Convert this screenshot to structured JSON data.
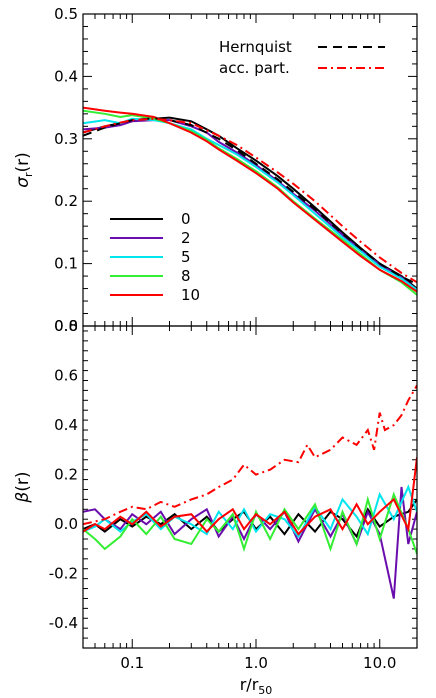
{
  "chart_data": [
    {
      "type": "line",
      "panel": "top",
      "ylabel": "σr(r)",
      "xscale": "log",
      "xlim": [
        0.04,
        20
      ],
      "ylim": [
        0.0,
        0.5
      ],
      "yticks": [
        0.0,
        0.1,
        0.2,
        0.3,
        0.4,
        0.5
      ],
      "ytick_labels": [
        "0.0",
        "0.1",
        "0.2",
        "0.3",
        "0.4",
        "0.5"
      ],
      "legend_models": {
        "placement": "top-right",
        "entries": [
          {
            "label": "Hernquist",
            "color": "#000000",
            "style": "dashed"
          },
          {
            "label": "acc. part.",
            "color": "#ff0000",
            "style": "dash-dot"
          }
        ]
      },
      "legend_times": {
        "placement": "lower-left",
        "entries": [
          {
            "label": "0",
            "color": "#000000"
          },
          {
            "label": "2",
            "color": "#6a0dad"
          },
          {
            "label": "5",
            "color": "#00e5ee"
          },
          {
            "label": "8",
            "color": "#33ee33"
          },
          {
            "label": "10",
            "color": "#ff0000"
          }
        ]
      },
      "series": [
        {
          "name": "0",
          "color": "#000000",
          "style": "solid",
          "x": [
            0.04,
            0.06,
            0.08,
            0.1,
            0.15,
            0.2,
            0.3,
            0.4,
            0.5,
            0.7,
            1.0,
            1.5,
            2,
            3,
            5,
            7,
            10,
            15,
            20
          ],
          "y": [
            0.31,
            0.32,
            0.325,
            0.33,
            0.332,
            0.334,
            0.328,
            0.315,
            0.305,
            0.285,
            0.265,
            0.24,
            0.22,
            0.19,
            0.15,
            0.125,
            0.1,
            0.08,
            0.06
          ]
        },
        {
          "name": "2",
          "color": "#6a0dad",
          "style": "solid",
          "x": [
            0.04,
            0.06,
            0.08,
            0.1,
            0.15,
            0.2,
            0.3,
            0.4,
            0.5,
            0.7,
            1.0,
            1.5,
            2,
            3,
            5,
            7,
            10,
            15,
            20
          ],
          "y": [
            0.315,
            0.318,
            0.322,
            0.328,
            0.33,
            0.33,
            0.32,
            0.31,
            0.295,
            0.278,
            0.258,
            0.232,
            0.212,
            0.185,
            0.146,
            0.122,
            0.098,
            0.078,
            0.058
          ]
        },
        {
          "name": "5",
          "color": "#00e5ee",
          "style": "solid",
          "x": [
            0.04,
            0.06,
            0.08,
            0.1,
            0.15,
            0.2,
            0.3,
            0.4,
            0.5,
            0.7,
            1.0,
            1.5,
            2,
            3,
            5,
            7,
            10,
            15,
            20
          ],
          "y": [
            0.325,
            0.33,
            0.325,
            0.332,
            0.33,
            0.325,
            0.315,
            0.3,
            0.29,
            0.275,
            0.255,
            0.23,
            0.21,
            0.18,
            0.142,
            0.12,
            0.095,
            0.076,
            0.058
          ]
        },
        {
          "name": "8",
          "color": "#33ee33",
          "style": "solid",
          "x": [
            0.04,
            0.06,
            0.08,
            0.1,
            0.15,
            0.2,
            0.3,
            0.4,
            0.5,
            0.7,
            1.0,
            1.5,
            2,
            3,
            5,
            7,
            10,
            15,
            20
          ],
          "y": [
            0.345,
            0.34,
            0.335,
            0.338,
            0.332,
            0.325,
            0.312,
            0.298,
            0.285,
            0.268,
            0.248,
            0.222,
            0.2,
            0.172,
            0.138,
            0.115,
            0.09,
            0.07,
            0.05
          ]
        },
        {
          "name": "10",
          "color": "#ff0000",
          "style": "solid",
          "x": [
            0.04,
            0.06,
            0.08,
            0.1,
            0.15,
            0.2,
            0.3,
            0.4,
            0.5,
            0.7,
            1.0,
            1.5,
            2,
            3,
            5,
            7,
            10,
            15,
            20
          ],
          "y": [
            0.35,
            0.345,
            0.342,
            0.34,
            0.335,
            0.325,
            0.31,
            0.296,
            0.283,
            0.265,
            0.245,
            0.22,
            0.198,
            0.17,
            0.135,
            0.112,
            0.09,
            0.072,
            0.055
          ]
        },
        {
          "name": "Hernquist",
          "color": "#000000",
          "style": "dashed",
          "x": [
            0.04,
            0.06,
            0.08,
            0.1,
            0.15,
            0.2,
            0.3,
            0.5,
            0.7,
            1.0,
            1.5,
            2,
            3,
            5,
            7,
            10,
            15,
            20
          ],
          "y": [
            0.305,
            0.318,
            0.325,
            0.33,
            0.333,
            0.33,
            0.322,
            0.3,
            0.282,
            0.26,
            0.235,
            0.215,
            0.187,
            0.148,
            0.124,
            0.1,
            0.079,
            0.067
          ]
        },
        {
          "name": "acc. part.",
          "color": "#ff0000",
          "style": "dash-dot",
          "x": [
            0.04,
            0.06,
            0.08,
            0.1,
            0.15,
            0.2,
            0.3,
            0.5,
            0.7,
            1.0,
            1.5,
            2,
            3,
            5,
            7,
            10,
            15,
            20
          ],
          "y": [
            0.31,
            0.32,
            0.326,
            0.33,
            0.332,
            0.33,
            0.325,
            0.305,
            0.29,
            0.27,
            0.246,
            0.228,
            0.2,
            0.16,
            0.135,
            0.11,
            0.085,
            0.07
          ]
        }
      ]
    },
    {
      "type": "line",
      "panel": "bottom",
      "xlabel": "r/r50",
      "ylabel": "β(r)",
      "xscale": "log",
      "xlim": [
        0.04,
        20
      ],
      "ylim": [
        -0.5,
        0.8
      ],
      "xticks": [
        0.1,
        1.0,
        10.0
      ],
      "xtick_labels": [
        "0.1",
        "1.0",
        "10.0"
      ],
      "yticks": [
        -0.4,
        -0.2,
        0.0,
        0.2,
        0.4,
        0.6,
        0.8
      ],
      "ytick_labels": [
        "-0.4",
        "-0.2",
        "0.0",
        "0.2",
        "0.4",
        "0.6",
        "0.8"
      ],
      "series": [
        {
          "name": "0",
          "color": "#000000",
          "style": "solid",
          "x": [
            0.04,
            0.05,
            0.06,
            0.08,
            0.1,
            0.13,
            0.17,
            0.22,
            0.3,
            0.4,
            0.5,
            0.65,
            0.8,
            1.0,
            1.3,
            1.7,
            2.2,
            3,
            4,
            5,
            6.5,
            8,
            10,
            13,
            17,
            20
          ],
          "y": [
            -0.02,
            0.0,
            -0.03,
            0.02,
            -0.01,
            0.03,
            0.0,
            0.04,
            -0.02,
            0.03,
            -0.03,
            0.02,
            0.05,
            -0.02,
            0.03,
            -0.04,
            0.04,
            -0.03,
            0.05,
            0.02,
            -0.05,
            0.06,
            -0.01,
            0.03,
            0.05,
            0.1
          ]
        },
        {
          "name": "2",
          "color": "#6a0dad",
          "style": "solid",
          "x": [
            0.04,
            0.05,
            0.06,
            0.08,
            0.1,
            0.13,
            0.17,
            0.22,
            0.3,
            0.4,
            0.5,
            0.65,
            0.8,
            1.0,
            1.3,
            1.7,
            2.2,
            3,
            4,
            5,
            6.5,
            8,
            10,
            13,
            15,
            17,
            20
          ],
          "y": [
            0.05,
            0.06,
            0.02,
            -0.02,
            0.04,
            0.0,
            0.05,
            -0.04,
            0.02,
            0.06,
            -0.05,
            0.03,
            -0.06,
            0.04,
            -0.02,
            0.05,
            -0.07,
            0.06,
            -0.05,
            0.04,
            -0.08,
            0.05,
            -0.04,
            -0.3,
            0.15,
            -0.08,
            0.05
          ]
        },
        {
          "name": "5",
          "color": "#00e5ee",
          "style": "solid",
          "x": [
            0.04,
            0.05,
            0.06,
            0.08,
            0.1,
            0.13,
            0.17,
            0.22,
            0.3,
            0.4,
            0.5,
            0.65,
            0.8,
            1.0,
            1.3,
            1.7,
            2.2,
            3,
            4,
            5,
            6.5,
            8,
            10,
            13,
            17,
            20
          ],
          "y": [
            -0.03,
            -0.01,
            0.02,
            -0.03,
            0.01,
            0.04,
            -0.02,
            0.03,
            0.0,
            -0.04,
            0.05,
            -0.02,
            0.06,
            -0.03,
            0.04,
            0.02,
            -0.05,
            0.07,
            -0.02,
            0.1,
            0.03,
            -0.04,
            0.12,
            0.02,
            0.15,
            0.05
          ]
        },
        {
          "name": "8",
          "color": "#33ee33",
          "style": "solid",
          "x": [
            0.04,
            0.05,
            0.06,
            0.08,
            0.1,
            0.13,
            0.17,
            0.22,
            0.3,
            0.4,
            0.5,
            0.65,
            0.8,
            1.0,
            1.3,
            1.7,
            2.2,
            3,
            4,
            5,
            6.5,
            8,
            10,
            13,
            17,
            20
          ],
          "y": [
            -0.02,
            -0.06,
            -0.1,
            -0.05,
            0.02,
            -0.04,
            0.03,
            -0.06,
            -0.08,
            0.02,
            -0.03,
            0.04,
            -0.1,
            0.05,
            -0.06,
            0.06,
            -0.02,
            0.08,
            -0.1,
            0.05,
            -0.08,
            0.1,
            -0.06,
            0.12,
            -0.02,
            -0.12
          ]
        },
        {
          "name": "10",
          "color": "#ff0000",
          "style": "solid",
          "x": [
            0.04,
            0.05,
            0.06,
            0.08,
            0.1,
            0.13,
            0.17,
            0.22,
            0.3,
            0.4,
            0.5,
            0.65,
            0.8,
            1.0,
            1.3,
            1.7,
            2.2,
            3,
            4,
            5,
            6.5,
            8,
            10,
            13,
            17,
            20
          ],
          "y": [
            -0.03,
            0.0,
            -0.02,
            0.03,
            0.0,
            0.05,
            -0.01,
            0.03,
            0.04,
            -0.03,
            0.02,
            0.06,
            -0.02,
            0.04,
            0.0,
            0.05,
            -0.04,
            0.03,
            0.06,
            -0.02,
            0.08,
            0.0,
            0.05,
            0.1,
            -0.02,
            0.27
          ]
        },
        {
          "name": "acc. part.",
          "color": "#ff0000",
          "style": "dash-dot",
          "x": [
            0.04,
            0.06,
            0.08,
            0.1,
            0.13,
            0.17,
            0.22,
            0.3,
            0.4,
            0.5,
            0.65,
            0.8,
            1.0,
            1.3,
            1.7,
            2.2,
            2.6,
            3,
            4,
            5,
            6.5,
            8,
            9,
            10,
            11,
            13,
            15,
            17,
            20
          ],
          "y": [
            0.0,
            0.02,
            0.05,
            0.07,
            0.06,
            0.09,
            0.07,
            0.1,
            0.12,
            0.15,
            0.18,
            0.24,
            0.2,
            0.22,
            0.26,
            0.25,
            0.32,
            0.27,
            0.3,
            0.35,
            0.32,
            0.38,
            0.3,
            0.45,
            0.38,
            0.4,
            0.44,
            0.5,
            0.56
          ]
        }
      ]
    }
  ]
}
